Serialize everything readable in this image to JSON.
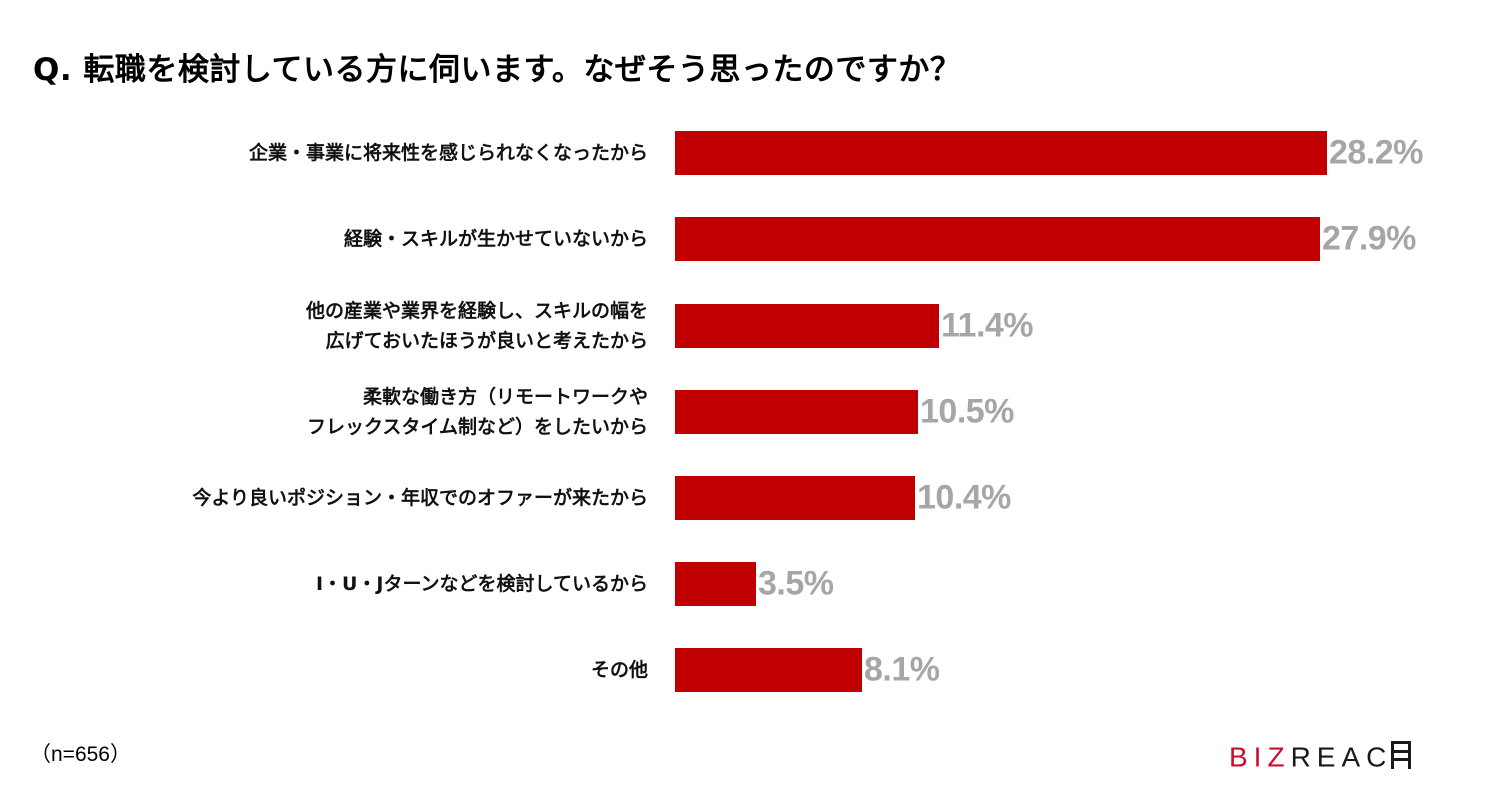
{
  "title": "Q. 転職を検討している方に伺います。なぜそう思ったのですか？",
  "sample_note": "（n=656）",
  "brand": {
    "logo_part1": "BIZ",
    "logo_part2": "REAC",
    "logo_icon": "h-ladder-icon",
    "colors": {
      "red": "#c8102e",
      "dark": "#1a1a1a"
    }
  },
  "colors": {
    "bar": "#c00000",
    "value_label": "#a6a6a6",
    "text": "#000000"
  },
  "rows": [
    {
      "label_lines": [
        "企業・事業に将来性を感じられなくなったから"
      ],
      "value": 28.2,
      "value_label": "28.2%"
    },
    {
      "label_lines": [
        "経験・スキルが生かせていないから"
      ],
      "value": 27.9,
      "value_label": "27.9%"
    },
    {
      "label_lines": [
        "他の産業や業界を経験し、スキルの幅を",
        "広げておいたほうが良いと考えたから"
      ],
      "value": 11.4,
      "value_label": "11.4%"
    },
    {
      "label_lines": [
        "柔軟な働き方（リモートワークや",
        "フレックスタイム制など）をしたいから"
      ],
      "value": 10.5,
      "value_label": "10.5%"
    },
    {
      "label_lines": [
        "今より良いポジション・年収でのオファーが来たから"
      ],
      "value": 10.4,
      "value_label": "10.4%"
    },
    {
      "label_lines": [
        "I・U・Jターンなどを検討しているから"
      ],
      "value": 3.5,
      "value_label": "3.5%"
    },
    {
      "label_lines": [
        "その他"
      ],
      "value": 8.1,
      "value_label": "8.1%"
    }
  ],
  "chart_data": {
    "type": "bar",
    "orientation": "horizontal",
    "title": "Q. 転職を検討している方に伺います。なぜそう思ったのですか？",
    "categories": [
      "企業・事業に将来性を感じられなくなったから",
      "経験・スキルが生かせていないから",
      "他の産業や業界を経験し、スキルの幅を広げておいたほうが良いと考えたから",
      "柔軟な働き方（リモートワークやフレックスタイム制など）をしたいから",
      "今より良いポジション・年収でのオファーが来たから",
      "I・U・Jターンなどを検討しているから",
      "その他"
    ],
    "values": [
      28.2,
      27.9,
      11.4,
      10.5,
      10.4,
      3.5,
      8.1
    ],
    "unit": "%",
    "xlabel": "",
    "ylabel": "",
    "grid": false,
    "legend": null,
    "data_labels": true,
    "annotations": [
      "（n=656）"
    ],
    "bar_color": "#c00000"
  }
}
